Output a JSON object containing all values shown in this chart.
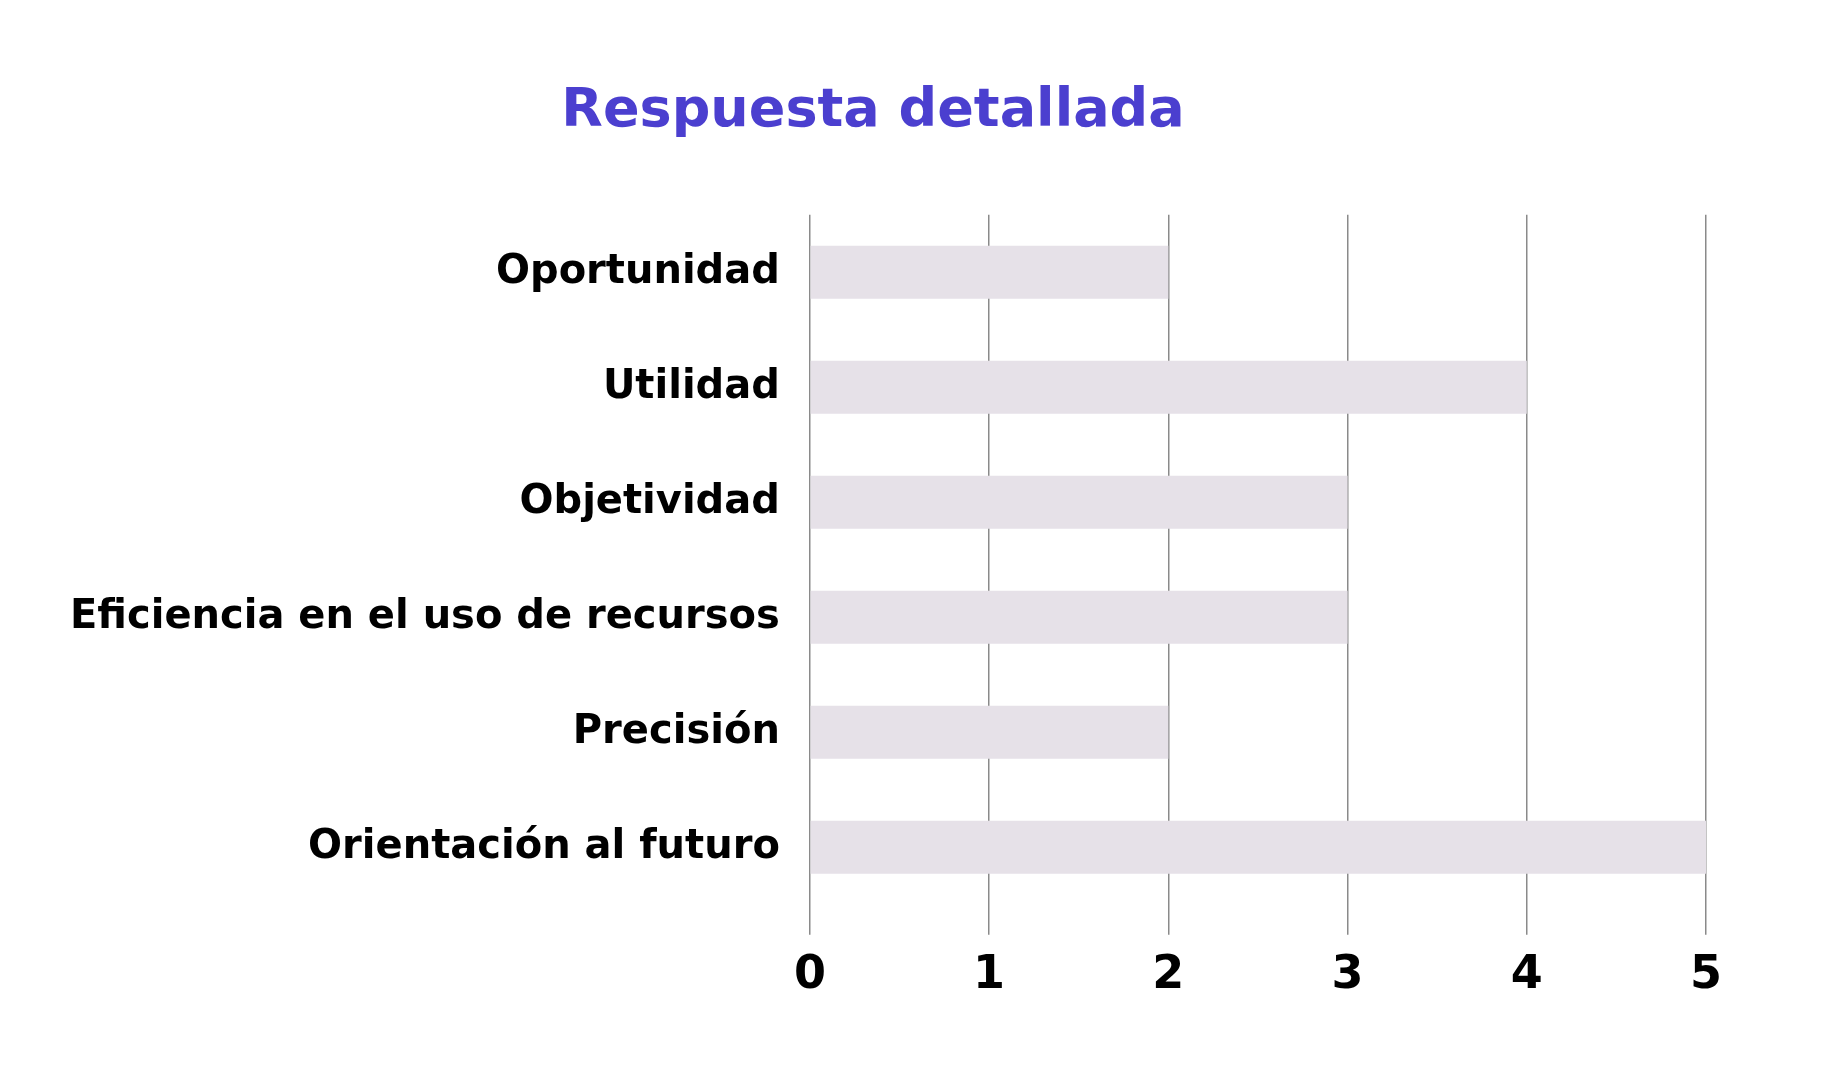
{
  "chart_data": {
    "type": "bar",
    "orientation": "horizontal",
    "title": "Respuesta detallada",
    "categories": [
      "Oportunidad",
      "Utilidad",
      "Objetividad",
      "Eficiencia en el uso de recursos",
      "Precisión",
      "Orientación al futuro"
    ],
    "values": [
      2,
      4,
      3,
      3,
      2,
      5
    ],
    "color": "#e6e1e8",
    "xlim": [
      0,
      5
    ],
    "xticks": [
      0,
      1,
      2,
      3,
      4,
      5
    ],
    "grid": "x",
    "legend": false
  }
}
